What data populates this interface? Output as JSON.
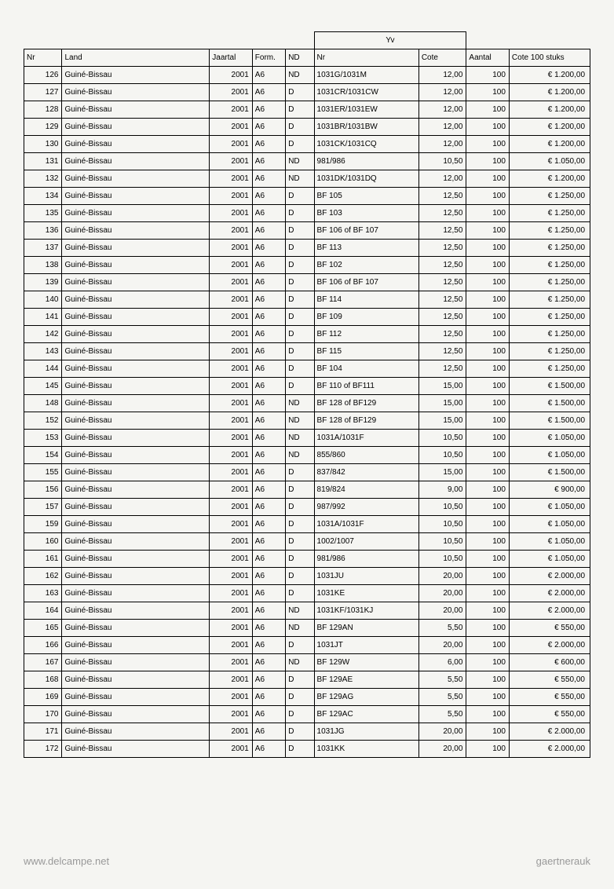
{
  "yv_header": "Yv",
  "headers": {
    "nr": "Nr",
    "land": "Land",
    "jaartal": "Jaartal",
    "form": "Form.",
    "nd": "ND",
    "yvnr": "Nr",
    "cote": "Cote",
    "aantal": "Aantal",
    "cote100": "Cote 100 stuks"
  },
  "rows": [
    {
      "nr": "126",
      "land": "Guiné-Bissau",
      "jaartal": "2001",
      "form": "A6",
      "nd": "ND",
      "yvnr": "1031G/1031M",
      "cote": "12,00",
      "aantal": "100",
      "cote100": "€ 1.200,00"
    },
    {
      "nr": "127",
      "land": "Guiné-Bissau",
      "jaartal": "2001",
      "form": "A6",
      "nd": "D",
      "yvnr": "1031CR/1031CW",
      "cote": "12,00",
      "aantal": "100",
      "cote100": "€ 1.200,00"
    },
    {
      "nr": "128",
      "land": "Guiné-Bissau",
      "jaartal": "2001",
      "form": "A6",
      "nd": "D",
      "yvnr": "1031ER/1031EW",
      "cote": "12,00",
      "aantal": "100",
      "cote100": "€ 1.200,00"
    },
    {
      "nr": "129",
      "land": "Guiné-Bissau",
      "jaartal": "2001",
      "form": "A6",
      "nd": "D",
      "yvnr": "1031BR/1031BW",
      "cote": "12,00",
      "aantal": "100",
      "cote100": "€ 1.200,00"
    },
    {
      "nr": "130",
      "land": "Guiné-Bissau",
      "jaartal": "2001",
      "form": "A6",
      "nd": "D",
      "yvnr": "1031CK/1031CQ",
      "cote": "12,00",
      "aantal": "100",
      "cote100": "€ 1.200,00"
    },
    {
      "nr": "131",
      "land": "Guiné-Bissau",
      "jaartal": "2001",
      "form": "A6",
      "nd": "ND",
      "yvnr": "981/986",
      "cote": "10,50",
      "aantal": "100",
      "cote100": "€ 1.050,00"
    },
    {
      "nr": "132",
      "land": "Guiné-Bissau",
      "jaartal": "2001",
      "form": "A6",
      "nd": "ND",
      "yvnr": "1031DK/1031DQ",
      "cote": "12,00",
      "aantal": "100",
      "cote100": "€ 1.200,00"
    },
    {
      "nr": "134",
      "land": "Guiné-Bissau",
      "jaartal": "2001",
      "form": "A6",
      "nd": "D",
      "yvnr": "BF 105",
      "cote": "12,50",
      "aantal": "100",
      "cote100": "€ 1.250,00"
    },
    {
      "nr": "135",
      "land": "Guiné-Bissau",
      "jaartal": "2001",
      "form": "A6",
      "nd": "D",
      "yvnr": "BF 103",
      "cote": "12,50",
      "aantal": "100",
      "cote100": "€ 1.250,00"
    },
    {
      "nr": "136",
      "land": "Guiné-Bissau",
      "jaartal": "2001",
      "form": "A6",
      "nd": "D",
      "yvnr": "BF 106 of BF 107",
      "cote": "12,50",
      "aantal": "100",
      "cote100": "€ 1.250,00"
    },
    {
      "nr": "137",
      "land": "Guiné-Bissau",
      "jaartal": "2001",
      "form": "A6",
      "nd": "D",
      "yvnr": "BF 113",
      "cote": "12,50",
      "aantal": "100",
      "cote100": "€ 1.250,00"
    },
    {
      "nr": "138",
      "land": "Guiné-Bissau",
      "jaartal": "2001",
      "form": "A6",
      "nd": "D",
      "yvnr": "BF 102",
      "cote": "12,50",
      "aantal": "100",
      "cote100": "€ 1.250,00"
    },
    {
      "nr": "139",
      "land": "Guiné-Bissau",
      "jaartal": "2001",
      "form": "A6",
      "nd": "D",
      "yvnr": "BF 106 of BF 107",
      "cote": "12,50",
      "aantal": "100",
      "cote100": "€ 1.250,00"
    },
    {
      "nr": "140",
      "land": "Guiné-Bissau",
      "jaartal": "2001",
      "form": "A6",
      "nd": "D",
      "yvnr": "BF 114",
      "cote": "12,50",
      "aantal": "100",
      "cote100": "€ 1.250,00"
    },
    {
      "nr": "141",
      "land": "Guiné-Bissau",
      "jaartal": "2001",
      "form": "A6",
      "nd": "D",
      "yvnr": "BF 109",
      "cote": "12,50",
      "aantal": "100",
      "cote100": "€ 1.250,00"
    },
    {
      "nr": "142",
      "land": "Guiné-Bissau",
      "jaartal": "2001",
      "form": "A6",
      "nd": "D",
      "yvnr": "BF 112",
      "cote": "12,50",
      "aantal": "100",
      "cote100": "€ 1.250,00"
    },
    {
      "nr": "143",
      "land": "Guiné-Bissau",
      "jaartal": "2001",
      "form": "A6",
      "nd": "D",
      "yvnr": "BF 115",
      "cote": "12,50",
      "aantal": "100",
      "cote100": "€ 1.250,00"
    },
    {
      "nr": "144",
      "land": "Guiné-Bissau",
      "jaartal": "2001",
      "form": "A6",
      "nd": "D",
      "yvnr": "BF 104",
      "cote": "12,50",
      "aantal": "100",
      "cote100": "€ 1.250,00"
    },
    {
      "nr": "145",
      "land": "Guiné-Bissau",
      "jaartal": "2001",
      "form": "A6",
      "nd": "D",
      "yvnr": "BF 110 of BF111",
      "cote": "15,00",
      "aantal": "100",
      "cote100": "€ 1.500,00"
    },
    {
      "nr": "148",
      "land": "Guiné-Bissau",
      "jaartal": "2001",
      "form": "A6",
      "nd": "ND",
      "yvnr": "BF 128 of BF129",
      "cote": "15,00",
      "aantal": "100",
      "cote100": "€ 1.500,00"
    },
    {
      "nr": "152",
      "land": "Guiné-Bissau",
      "jaartal": "2001",
      "form": "A6",
      "nd": "ND",
      "yvnr": "BF 128 of BF129",
      "cote": "15,00",
      "aantal": "100",
      "cote100": "€ 1.500,00"
    },
    {
      "nr": "153",
      "land": "Guiné-Bissau",
      "jaartal": "2001",
      "form": "A6",
      "nd": "ND",
      "yvnr": "1031A/1031F",
      "cote": "10,50",
      "aantal": "100",
      "cote100": "€ 1.050,00"
    },
    {
      "nr": "154",
      "land": "Guiné-Bissau",
      "jaartal": "2001",
      "form": "A6",
      "nd": "ND",
      "yvnr": "855/860",
      "cote": "10,50",
      "aantal": "100",
      "cote100": "€ 1.050,00"
    },
    {
      "nr": "155",
      "land": "Guiné-Bissau",
      "jaartal": "2001",
      "form": "A6",
      "nd": "D",
      "yvnr": "837/842",
      "cote": "15,00",
      "aantal": "100",
      "cote100": "€ 1.500,00"
    },
    {
      "nr": "156",
      "land": "Guiné-Bissau",
      "jaartal": "2001",
      "form": "A6",
      "nd": "D",
      "yvnr": "819/824",
      "cote": "9,00",
      "aantal": "100",
      "cote100": "€ 900,00"
    },
    {
      "nr": "157",
      "land": "Guiné-Bissau",
      "jaartal": "2001",
      "form": "A6",
      "nd": "D",
      "yvnr": "987/992",
      "cote": "10,50",
      "aantal": "100",
      "cote100": "€ 1.050,00"
    },
    {
      "nr": "159",
      "land": "Guiné-Bissau",
      "jaartal": "2001",
      "form": "A6",
      "nd": "D",
      "yvnr": "1031A/1031F",
      "cote": "10,50",
      "aantal": "100",
      "cote100": "€ 1.050,00"
    },
    {
      "nr": "160",
      "land": "Guiné-Bissau",
      "jaartal": "2001",
      "form": "A6",
      "nd": "D",
      "yvnr": "1002/1007",
      "cote": "10,50",
      "aantal": "100",
      "cote100": "€ 1.050,00"
    },
    {
      "nr": "161",
      "land": "Guiné-Bissau",
      "jaartal": "2001",
      "form": "A6",
      "nd": "D",
      "yvnr": "981/986",
      "cote": "10,50",
      "aantal": "100",
      "cote100": "€ 1.050,00"
    },
    {
      "nr": "162",
      "land": "Guiné-Bissau",
      "jaartal": "2001",
      "form": "A6",
      "nd": "D",
      "yvnr": "1031JU",
      "cote": "20,00",
      "aantal": "100",
      "cote100": "€ 2.000,00"
    },
    {
      "nr": "163",
      "land": "Guiné-Bissau",
      "jaartal": "2001",
      "form": "A6",
      "nd": "D",
      "yvnr": "1031KE",
      "cote": "20,00",
      "aantal": "100",
      "cote100": "€ 2.000,00"
    },
    {
      "nr": "164",
      "land": "Guiné-Bissau",
      "jaartal": "2001",
      "form": "A6",
      "nd": "ND",
      "yvnr": "1031KF/1031KJ",
      "cote": "20,00",
      "aantal": "100",
      "cote100": "€ 2.000,00"
    },
    {
      "nr": "165",
      "land": "Guiné-Bissau",
      "jaartal": "2001",
      "form": "A6",
      "nd": "ND",
      "yvnr": "BF 129AN",
      "cote": "5,50",
      "aantal": "100",
      "cote100": "€ 550,00"
    },
    {
      "nr": "166",
      "land": "Guiné-Bissau",
      "jaartal": "2001",
      "form": "A6",
      "nd": "D",
      "yvnr": "1031JT",
      "cote": "20,00",
      "aantal": "100",
      "cote100": "€ 2.000,00"
    },
    {
      "nr": "167",
      "land": "Guiné-Bissau",
      "jaartal": "2001",
      "form": "A6",
      "nd": "ND",
      "yvnr": "BF 129W",
      "cote": "6,00",
      "aantal": "100",
      "cote100": "€ 600,00"
    },
    {
      "nr": "168",
      "land": "Guiné-Bissau",
      "jaartal": "2001",
      "form": "A6",
      "nd": "D",
      "yvnr": "BF 129AE",
      "cote": "5,50",
      "aantal": "100",
      "cote100": "€ 550,00"
    },
    {
      "nr": "169",
      "land": "Guiné-Bissau",
      "jaartal": "2001",
      "form": "A6",
      "nd": "D",
      "yvnr": "BF 129AG",
      "cote": "5,50",
      "aantal": "100",
      "cote100": "€ 550,00"
    },
    {
      "nr": "170",
      "land": "Guiné-Bissau",
      "jaartal": "2001",
      "form": "A6",
      "nd": "D",
      "yvnr": "BF 129AC",
      "cote": "5,50",
      "aantal": "100",
      "cote100": "€ 550,00"
    },
    {
      "nr": "171",
      "land": "Guiné-Bissau",
      "jaartal": "2001",
      "form": "A6",
      "nd": "D",
      "yvnr": "1031JG",
      "cote": "20,00",
      "aantal": "100",
      "cote100": "€ 2.000,00"
    },
    {
      "nr": "172",
      "land": "Guiné-Bissau",
      "jaartal": "2001",
      "form": "A6",
      "nd": "D",
      "yvnr": "1031KK",
      "cote": "20,00",
      "aantal": "100",
      "cote100": "€ 2.000,00"
    }
  ],
  "watermark_left": "www.delcampe.net",
  "watermark_right": "gaertnerauk"
}
